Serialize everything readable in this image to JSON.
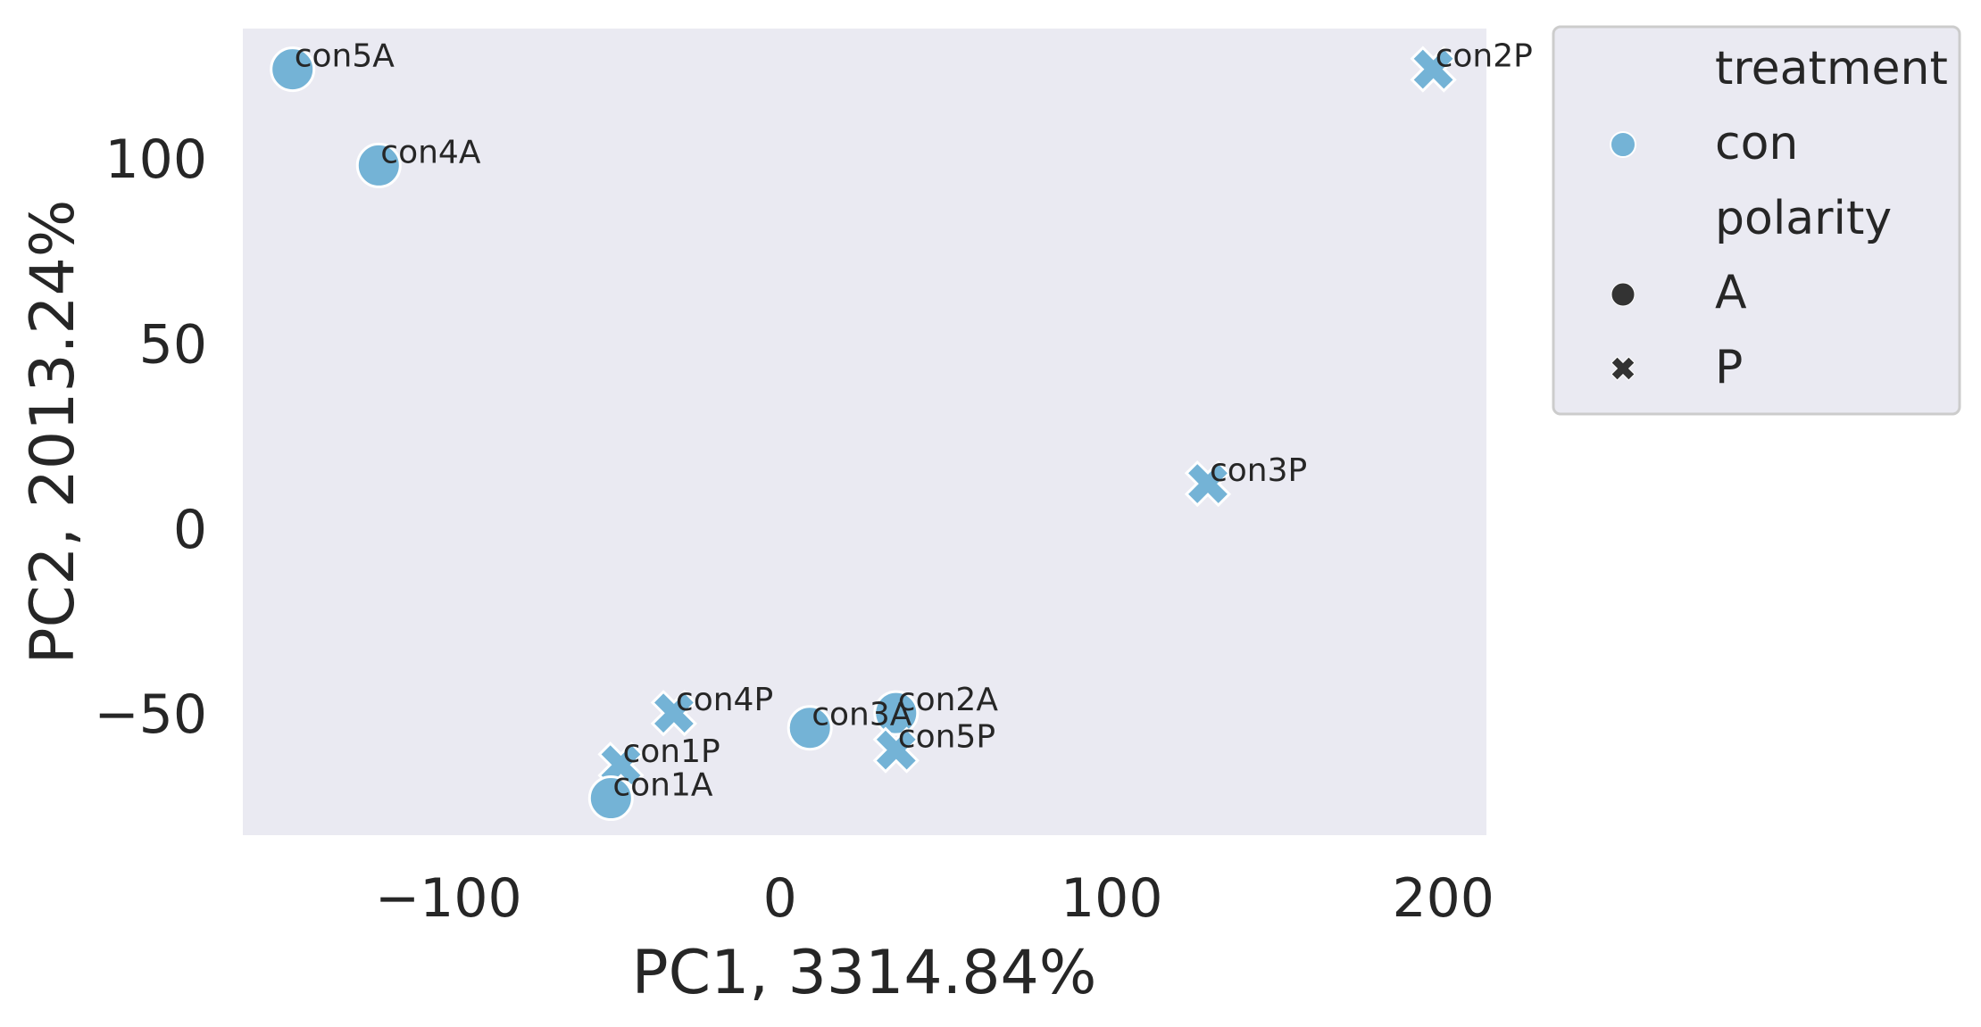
{
  "chart_data": {
    "type": "scatter",
    "title": "",
    "xlabel": "PC1, 3314.84%",
    "ylabel": "PC2, 2013.24%",
    "xlim": [
      -162,
      213
    ],
    "ylim": [
      -83,
      135
    ],
    "xticks": [
      -100,
      0,
      100,
      200
    ],
    "xtick_labels": [
      "−100",
      "0",
      "100",
      "200"
    ],
    "yticks": [
      -50,
      0,
      50,
      100
    ],
    "ytick_labels": [
      "−50",
      "0",
      "50",
      "100"
    ],
    "grid": false,
    "background_color": "#eaeaf2",
    "point_color": "#74b3d6",
    "points": [
      {
        "label": "con5A",
        "x": -147,
        "y": 124,
        "polarity": "A",
        "treatment": "con"
      },
      {
        "label": "con4A",
        "x": -121,
        "y": 98,
        "polarity": "A",
        "treatment": "con"
      },
      {
        "label": "con2P",
        "x": 197,
        "y": 124,
        "polarity": "P",
        "treatment": "con"
      },
      {
        "label": "con3P",
        "x": 129,
        "y": 12,
        "polarity": "P",
        "treatment": "con"
      },
      {
        "label": "con4P",
        "x": -32,
        "y": -50,
        "polarity": "P",
        "treatment": "con"
      },
      {
        "label": "con3A",
        "x": 9,
        "y": -54,
        "polarity": "A",
        "treatment": "con"
      },
      {
        "label": "con2A",
        "x": 35,
        "y": -50,
        "polarity": "A",
        "treatment": "con"
      },
      {
        "label": "con5P",
        "x": 35,
        "y": -60,
        "polarity": "P",
        "treatment": "con"
      },
      {
        "label": "con1P",
        "x": -48,
        "y": -64,
        "polarity": "P",
        "treatment": "con"
      },
      {
        "label": "con1A",
        "x": -51,
        "y": -73,
        "polarity": "A",
        "treatment": "con"
      }
    ],
    "legend": {
      "placement": "outside-right-top",
      "entries": [
        {
          "text": "treatment",
          "kind": "heading"
        },
        {
          "text": "con",
          "kind": "color",
          "color": "#74b3d6"
        },
        {
          "text": "polarity",
          "kind": "heading"
        },
        {
          "text": "A",
          "kind": "marker",
          "marker": "circle",
          "color": "#333333"
        },
        {
          "text": "P",
          "kind": "marker",
          "marker": "x",
          "color": "#333333"
        }
      ]
    }
  }
}
